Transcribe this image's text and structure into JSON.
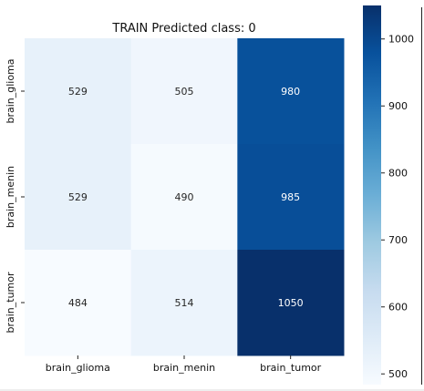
{
  "chart_data": {
    "type": "heatmap",
    "title": "TRAIN Predicted class: 0",
    "xlabel": "",
    "ylabel": "",
    "x_categories": [
      "brain_glioma",
      "brain_menin",
      "brain_tumor"
    ],
    "y_categories": [
      "brain_glioma",
      "brain_menin",
      "brain_tumor"
    ],
    "values": [
      [
        529,
        505,
        980
      ],
      [
        529,
        490,
        985
      ],
      [
        484,
        514,
        1050
      ]
    ],
    "colormap": "Blues",
    "colorbar": {
      "vmin": 484,
      "vmax": 1050,
      "ticks": [
        500,
        600,
        700,
        800,
        900,
        1000
      ]
    }
  }
}
